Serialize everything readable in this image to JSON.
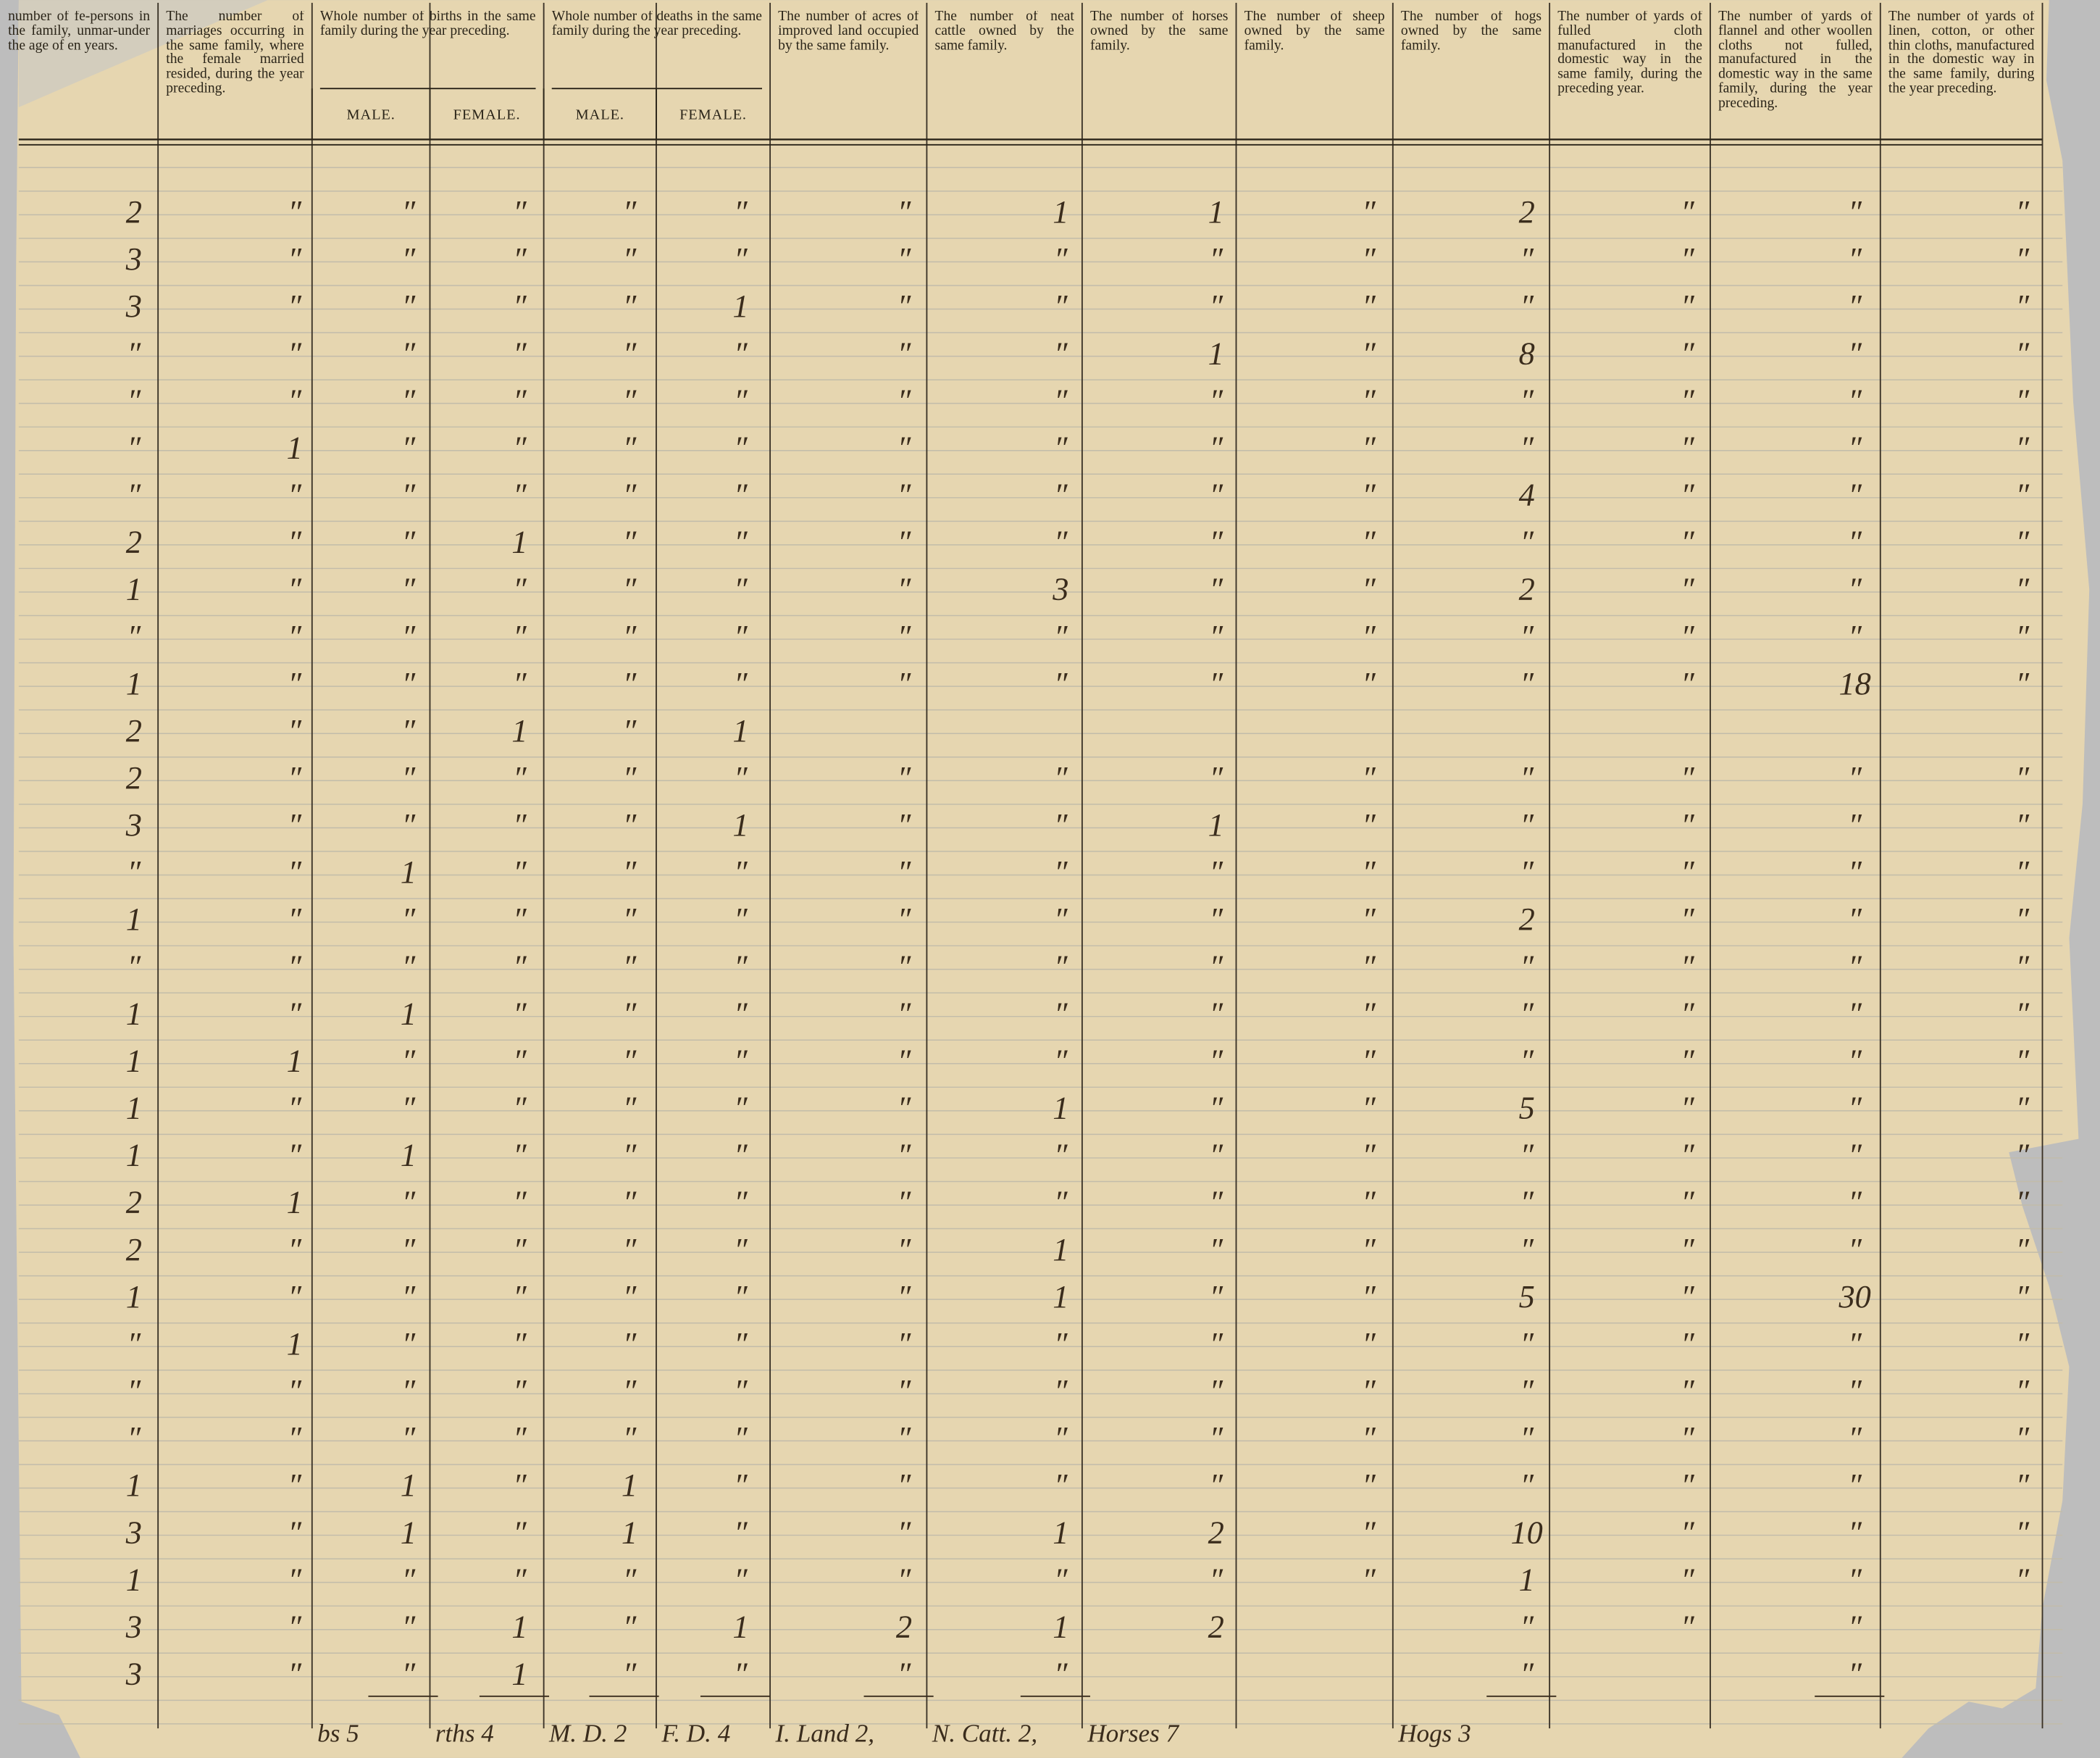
{
  "header": {
    "columns": [
      {
        "title": "number of fe-persons in the family, unmar-under the age of en years."
      },
      {
        "title": "The number of marriages occurring in the same family, where the female married resided, during the year preceding."
      },
      {
        "title": "Whole number of births in the same family during the year preceding.",
        "sub": [
          "MALE.",
          "FEMALE."
        ]
      },
      {
        "title": "Whole number of deaths in the same family during the year preceding.",
        "sub": [
          "MALE.",
          "FEMALE."
        ]
      },
      {
        "title": "The number of acres of improved land occupied by the same family."
      },
      {
        "title": "The number of neat cattle owned by the same family."
      },
      {
        "title": "The number of horses owned by the same family."
      },
      {
        "title": "The number of sheep owned by the same family."
      },
      {
        "title": "The number of hogs owned by the same family."
      },
      {
        "title": "The number of yards of fulled cloth manufactured in the domestic way in the same family, during the preceding year."
      },
      {
        "title": "The number of yards of flannel and other woollen cloths not fulled, manufactured in the domestic way in the same family, during the year preceding."
      },
      {
        "title": "The number of yards of linen, cotton, or other thin cloths, manufactured in the domestic way in the same family, during the year preceding."
      }
    ]
  },
  "table": {
    "rows": [
      [
        "2",
        "″",
        "″",
        "″",
        "″",
        "″",
        "″",
        "1",
        "1",
        "″",
        "2",
        "″",
        "″",
        "″"
      ],
      [
        "3",
        "″",
        "″",
        "″",
        "″",
        "″",
        "″",
        "″",
        "″",
        "″",
        "″",
        "″",
        "″",
        "″"
      ],
      [
        "3",
        "″",
        "″",
        "″",
        "″",
        "1",
        "″",
        "″",
        "″",
        "″",
        "″",
        "″",
        "″",
        "″"
      ],
      [
        "″",
        "″",
        "″",
        "″",
        "″",
        "″",
        "″",
        "″",
        "1",
        "″",
        "8",
        "″",
        "″",
        "″"
      ],
      [
        "″",
        "″",
        "″",
        "″",
        "″",
        "″",
        "″",
        "″",
        "″",
        "″",
        "″",
        "″",
        "″",
        "″"
      ],
      [
        "″",
        "1",
        "″",
        "″",
        "″",
        "″",
        "″",
        "″",
        "″",
        "″",
        "″",
        "″",
        "″",
        "″"
      ],
      [
        "″",
        "″",
        "″",
        "″",
        "″",
        "″",
        "″",
        "″",
        "″",
        "″",
        "4",
        "″",
        "″",
        "″"
      ],
      [
        "2",
        "″",
        "″",
        "1",
        "″",
        "″",
        "″",
        "″",
        "″",
        "″",
        "″",
        "″",
        "″",
        "″"
      ],
      [
        "1",
        "″",
        "″",
        "″",
        "″",
        "″",
        "″",
        "3",
        "″",
        "″",
        "2",
        "″",
        "″",
        "″"
      ],
      [
        "″",
        "″",
        "″",
        "″",
        "″",
        "″",
        "″",
        "″",
        "″",
        "″",
        "″",
        "″",
        "″",
        "″"
      ],
      [
        "1",
        "″",
        "″",
        "″",
        "″",
        "″",
        "″",
        "″",
        "″",
        "″",
        "″",
        "″",
        "18",
        "″"
      ],
      [
        "2",
        "″",
        "″",
        "1",
        "″",
        "1",
        null,
        null,
        null,
        null,
        null,
        null,
        null,
        null
      ],
      [
        "2",
        "″",
        "″",
        "″",
        "″",
        "″",
        "″",
        "″",
        "″",
        "″",
        "″",
        "″",
        "″",
        "″"
      ],
      [
        "3",
        "″",
        "″",
        "″",
        "″",
        "1",
        "″",
        "″",
        "1",
        "″",
        "″",
        "″",
        "″",
        "″"
      ],
      [
        "″",
        "″",
        "1",
        "″",
        "″",
        "″",
        "″",
        "″",
        "″",
        "″",
        "″",
        "″",
        "″",
        "″"
      ],
      [
        "1",
        "″",
        "″",
        "″",
        "″",
        "″",
        "″",
        "″",
        "″",
        "″",
        "2",
        "″",
        "″",
        "″"
      ],
      [
        "″",
        "″",
        "″",
        "″",
        "″",
        "″",
        "″",
        "″",
        "″",
        "″",
        "″",
        "″",
        "″",
        "″"
      ],
      [
        "1",
        "″",
        "1",
        "″",
        "″",
        "″",
        "″",
        "″",
        "″",
        "″",
        "″",
        "″",
        "″",
        "″"
      ],
      [
        "1",
        "1",
        "″",
        "″",
        "″",
        "″",
        "″",
        "″",
        "″",
        "″",
        "″",
        "″",
        "″",
        "″"
      ],
      [
        "1",
        "″",
        "″",
        "″",
        "″",
        "″",
        "″",
        "1",
        "″",
        "″",
        "5",
        "″",
        "″",
        "″"
      ],
      [
        "1",
        "″",
        "1",
        "″",
        "″",
        "″",
        "″",
        "″",
        "″",
        "″",
        "″",
        "″",
        "″",
        "″"
      ],
      [
        "2",
        "1",
        "″",
        "″",
        "″",
        "″",
        "″",
        "″",
        "″",
        "″",
        "″",
        "″",
        "″",
        "″"
      ],
      [
        "2",
        "″",
        "″",
        "″",
        "″",
        "″",
        "″",
        "1",
        "″",
        "″",
        "″",
        "″",
        "″",
        "″"
      ],
      [
        "1",
        "″",
        "″",
        "″",
        "″",
        "″",
        "″",
        "1",
        "″",
        "″",
        "5",
        "″",
        "30",
        "″"
      ],
      [
        "″",
        "1",
        "″",
        "″",
        "″",
        "″",
        "″",
        "″",
        "″",
        "″",
        "″",
        "″",
        "″",
        "″"
      ],
      [
        "″",
        "″",
        "″",
        "″",
        "″",
        "″",
        "″",
        "″",
        "″",
        "″",
        "″",
        "″",
        "″",
        "″"
      ],
      [
        "″",
        "″",
        "″",
        "″",
        "″",
        "″",
        "″",
        "″",
        "″",
        "″",
        "″",
        "″",
        "″",
        "″"
      ],
      [
        "1",
        "″",
        "1",
        "″",
        "1",
        "″",
        "″",
        "″",
        "″",
        "″",
        "″",
        "″",
        "″",
        "″"
      ],
      [
        "3",
        "″",
        "1",
        "″",
        "1",
        "″",
        "″",
        "1",
        "2",
        "″",
        "10",
        "″",
        "″",
        "″"
      ],
      [
        "1",
        "″",
        "″",
        "″",
        "″",
        "″",
        "″",
        "″",
        "″",
        "″",
        "1",
        "″",
        "″",
        "″"
      ],
      [
        "3",
        "″",
        "″",
        "1",
        "″",
        "1",
        "2",
        "1",
        "2",
        null,
        "″",
        "″",
        "″",
        null
      ],
      [
        "3",
        "″",
        "″",
        "1",
        "″",
        "″",
        "″",
        "″",
        null,
        null,
        "″",
        null,
        "″",
        null
      ]
    ],
    "footer": [
      null,
      null,
      "bs 5",
      "rths 4",
      "M. D. 2",
      "F. D. 4",
      "I. Land 2,",
      "N. Catt. 2,",
      "Horses 7",
      null,
      "Hogs 3",
      null,
      null,
      null
    ]
  }
}
